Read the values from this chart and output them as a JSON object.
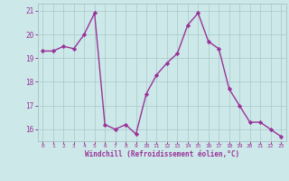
{
  "x": [
    0,
    1,
    2,
    3,
    4,
    5,
    6,
    7,
    8,
    9,
    10,
    11,
    12,
    13,
    14,
    15,
    16,
    17,
    18,
    19,
    20,
    21,
    22,
    23
  ],
  "y": [
    19.3,
    19.3,
    19.5,
    19.4,
    20.0,
    20.9,
    16.2,
    16.0,
    16.2,
    15.8,
    17.5,
    18.3,
    18.8,
    19.2,
    20.4,
    20.9,
    19.7,
    19.4,
    17.7,
    17.0,
    16.3,
    16.3,
    16.0,
    15.7
  ],
  "line_color": "#993399",
  "marker": "D",
  "markersize": 2.2,
  "linewidth": 1.0,
  "background_color": "#cce8e8",
  "grid_color": "#aac8c8",
  "xlabel": "Windchill (Refroidissement éolien,°C)",
  "xlabel_color": "#993399",
  "tick_color": "#993399",
  "label_color": "#993399",
  "ylim": [
    15.5,
    21.3
  ],
  "yticks": [
    16,
    17,
    18,
    19,
    20,
    21
  ],
  "xticks": [
    0,
    1,
    2,
    3,
    4,
    5,
    6,
    7,
    8,
    9,
    10,
    11,
    12,
    13,
    14,
    15,
    16,
    17,
    18,
    19,
    20,
    21,
    22,
    23
  ],
  "figsize": [
    3.2,
    2.0
  ],
  "dpi": 100
}
